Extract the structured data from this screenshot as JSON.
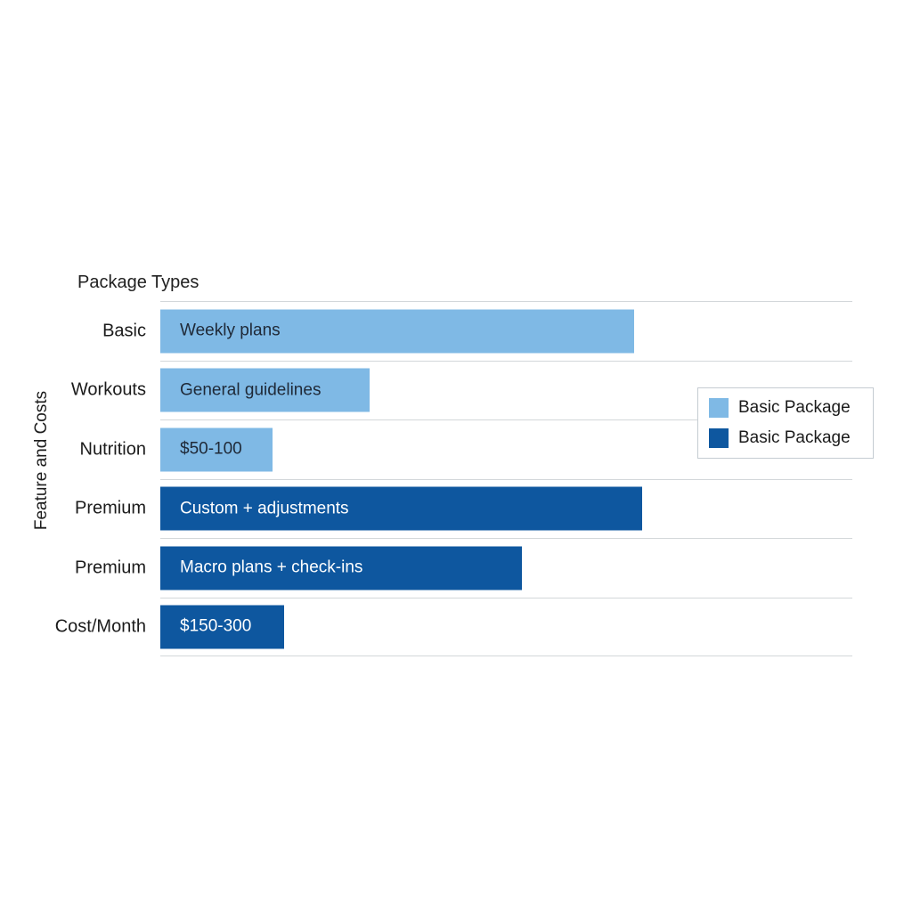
{
  "title": "Package Types",
  "y_axis_label": "Feature and Costs",
  "colors": {
    "basic": "#7FB9E5",
    "premium": "#0E579F",
    "bar_text_on_basic": "#1F2937",
    "bar_text_on_premium": "#FFFFFF",
    "gridline": "#D3D7DA",
    "legend_border": "#C5CCD2"
  },
  "legend": {
    "items": [
      {
        "label": "Basic Package",
        "color_key": "basic"
      },
      {
        "label": "Basic Package",
        "color_key": "premium"
      }
    ]
  },
  "chart_data": {
    "type": "bar",
    "orientation": "horizontal",
    "title": "Package Types",
    "ylabel": "Feature and Costs",
    "xlabel": "",
    "grid": "horizontal row separator lines, light gray",
    "legend_position": "center-right",
    "xlim": [
      0,
      1
    ],
    "rows": [
      {
        "category": "Basic",
        "label": "Weekly plans",
        "value": 0.685,
        "series": "basic"
      },
      {
        "category": "Workouts",
        "label": "General guidelines",
        "value": 0.302,
        "series": "basic"
      },
      {
        "category": "Nutrition",
        "label": "$50-100",
        "value": 0.162,
        "series": "basic"
      },
      {
        "category": "Premium",
        "label": "Custom + adjustments",
        "value": 0.696,
        "series": "premium"
      },
      {
        "category": "Premium",
        "label": "Macro plans + check-ins",
        "value": 0.522,
        "series": "premium"
      },
      {
        "category": "Cost/Month",
        "label": "$150-300",
        "value": 0.179,
        "series": "premium"
      }
    ]
  }
}
